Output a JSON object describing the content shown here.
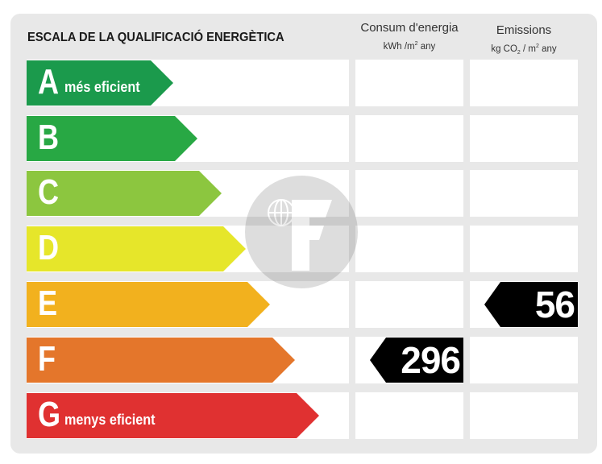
{
  "title": "ESCALA DE LA QUALIFICACIÓ ENERGÈTICA",
  "columns": {
    "consumption": {
      "label": "Consum d'energia",
      "unit_prefix": "kWh /m",
      "unit_exp": "2",
      "unit_suffix": " any"
    },
    "emissions": {
      "label": "Emissions",
      "unit_prefix": "kg CO",
      "unit_sub": "2",
      "unit_mid": " / m",
      "unit_exp": "2",
      "unit_suffix": "  any"
    }
  },
  "ratings": [
    {
      "letter": "A",
      "label": "més eficient",
      "color": "#1b9a4c"
    },
    {
      "letter": "B",
      "label": "",
      "color": "#28a844"
    },
    {
      "letter": "C",
      "label": "",
      "color": "#8cc63f"
    },
    {
      "letter": "D",
      "label": "",
      "color": "#e6e62a"
    },
    {
      "letter": "E",
      "label": "",
      "color": "#f2b11e"
    },
    {
      "letter": "F",
      "label": "",
      "color": "#e4762b"
    },
    {
      "letter": "G",
      "label": "menys eficient",
      "color": "#e03131"
    }
  ],
  "consumption_value": {
    "rating": "F",
    "value": "296"
  },
  "emissions_value": {
    "rating": "E",
    "value": "56"
  },
  "watermark_icon": "f-logo-watermark"
}
